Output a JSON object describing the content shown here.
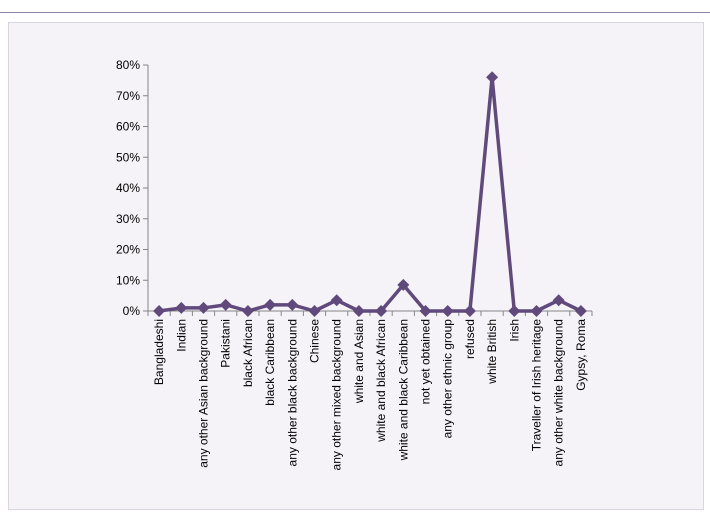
{
  "chart_data": {
    "type": "line",
    "title": "",
    "xlabel": "",
    "ylabel": "",
    "ylim": [
      0,
      80
    ],
    "y_tick_labels": [
      "0%",
      "10%",
      "20%",
      "30%",
      "40%",
      "50%",
      "60%",
      "70%",
      "80%"
    ],
    "grid": false,
    "legend": "none",
    "categories": [
      "Bangladeshi",
      "Indian",
      "any other Asian background",
      "Pakistani",
      "black African",
      "black Caribbean",
      "any other black background",
      "Chinese",
      "any other mixed background",
      "white and Asian",
      "white and black African",
      "white and black Caribbean",
      "not yet obtained",
      "any other ethnic group",
      "refused",
      "white British",
      "Irish",
      "Traveller of Irish heritage",
      "any other white background",
      "Gypsy, Roma"
    ],
    "series": [
      {
        "color": "#604a7b",
        "values": [
          0,
          1,
          1,
          2,
          0,
          2,
          2,
          0,
          3.5,
          0,
          0,
          8.5,
          0,
          0,
          0,
          76,
          0,
          0,
          3.5,
          0
        ]
      }
    ]
  }
}
